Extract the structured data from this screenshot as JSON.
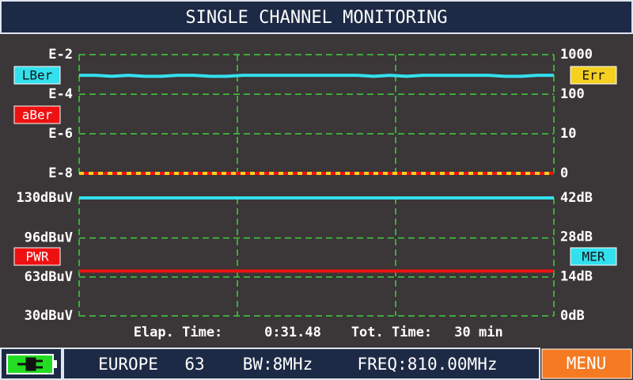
{
  "title": "SINGLE CHANNEL MONITORING",
  "status": {
    "elapsed_label": "Elap. Time:",
    "elapsed": "0:31.48",
    "total_label": "Tot. Time:",
    "total": "30 min"
  },
  "footer": {
    "region": "EUROPE",
    "channel": "63",
    "bw": "BW:8MHz",
    "freq": "FREQ:810.00MHz",
    "menu": "MENU"
  },
  "chart_data": [
    {
      "type": "line",
      "y_log": true,
      "y2_log": true,
      "grid": true,
      "ylim": [
        1e-08,
        0.01
      ],
      "yticks": [
        {
          "value": 0.01,
          "label": "E-2"
        },
        {
          "value": 0.0001,
          "label": "E-4"
        },
        {
          "value": 1e-06,
          "label": "E-6"
        },
        {
          "value": 1e-08,
          "label": "E-8"
        }
      ],
      "y2lim": [
        0,
        1000
      ],
      "y2ticks": [
        1000,
        100,
        10,
        0
      ],
      "series": [
        {
          "name": "LBer",
          "color": "#33e0ee",
          "values": [
            0.0009,
            0.0009,
            0.0008,
            0.0009,
            0.0008,
            0.0008,
            0.0009,
            0.0009,
            0.0008,
            0.0008,
            0.0009,
            0.0009,
            0.0009,
            0.0009,
            0.0009,
            0.0009,
            0.0009,
            0.0009,
            0.0008,
            0.0009,
            0.0008,
            0.0009,
            0.0009,
            0.0009,
            0.0009,
            0.0009,
            0.0008,
            0.0008,
            0.0009,
            0.0009
          ]
        },
        {
          "name": "aBer",
          "color": "#ee1111",
          "values": [
            1e-08,
            1e-08,
            1e-08,
            1e-08,
            1e-08,
            1e-08,
            1e-08,
            1e-08,
            1e-08,
            1e-08,
            1e-08,
            1e-08,
            1e-08,
            1e-08,
            1e-08,
            1e-08,
            1e-08,
            1e-08,
            1e-08,
            1e-08,
            1e-08,
            1e-08,
            1e-08,
            1e-08,
            1e-08,
            1e-08,
            1e-08,
            1e-08,
            1e-08,
            1e-08
          ]
        },
        {
          "name": "Err",
          "color": "#f5d020",
          "axis": "y2",
          "values": [
            0,
            0,
            0,
            0,
            0,
            0,
            0,
            0,
            0,
            0,
            0,
            0,
            0,
            0,
            0,
            0,
            0,
            0,
            0,
            0,
            0,
            0,
            0,
            0,
            0,
            0,
            0,
            0,
            0,
            0
          ]
        }
      ]
    },
    {
      "type": "line",
      "grid": true,
      "ylim": [
        30,
        130
      ],
      "yticks": [
        {
          "value": 130,
          "label": "130dBuV"
        },
        {
          "value": 96,
          "label": "96dBuV"
        },
        {
          "value": 63,
          "label": "63dBuV"
        },
        {
          "value": 30,
          "label": "30dBuV"
        }
      ],
      "y2lim": [
        0,
        42
      ],
      "y2ticks": [
        {
          "value": 42,
          "label": "42dB"
        },
        {
          "value": 28,
          "label": "28dB"
        },
        {
          "value": 14,
          "label": "14dB"
        },
        {
          "value": 0,
          "label": "0dB"
        }
      ],
      "series": [
        {
          "name": "PWR",
          "color": "#ee1111",
          "values": [
            68,
            68,
            68,
            68,
            68,
            68,
            68,
            68,
            68,
            68,
            68,
            68,
            68,
            68,
            68,
            68,
            68,
            68,
            68,
            68,
            68,
            68,
            68,
            68,
            68,
            68,
            68,
            68,
            68,
            68
          ]
        },
        {
          "name": "MER",
          "color": "#33e0ee",
          "axis": "y2",
          "values": [
            42,
            42,
            42,
            42,
            42,
            42,
            42,
            42,
            42,
            42,
            42,
            42,
            42,
            42,
            42,
            42,
            42,
            42,
            42,
            42,
            42,
            42,
            42,
            42,
            42,
            42,
            42,
            42,
            42,
            42
          ]
        }
      ]
    }
  ]
}
